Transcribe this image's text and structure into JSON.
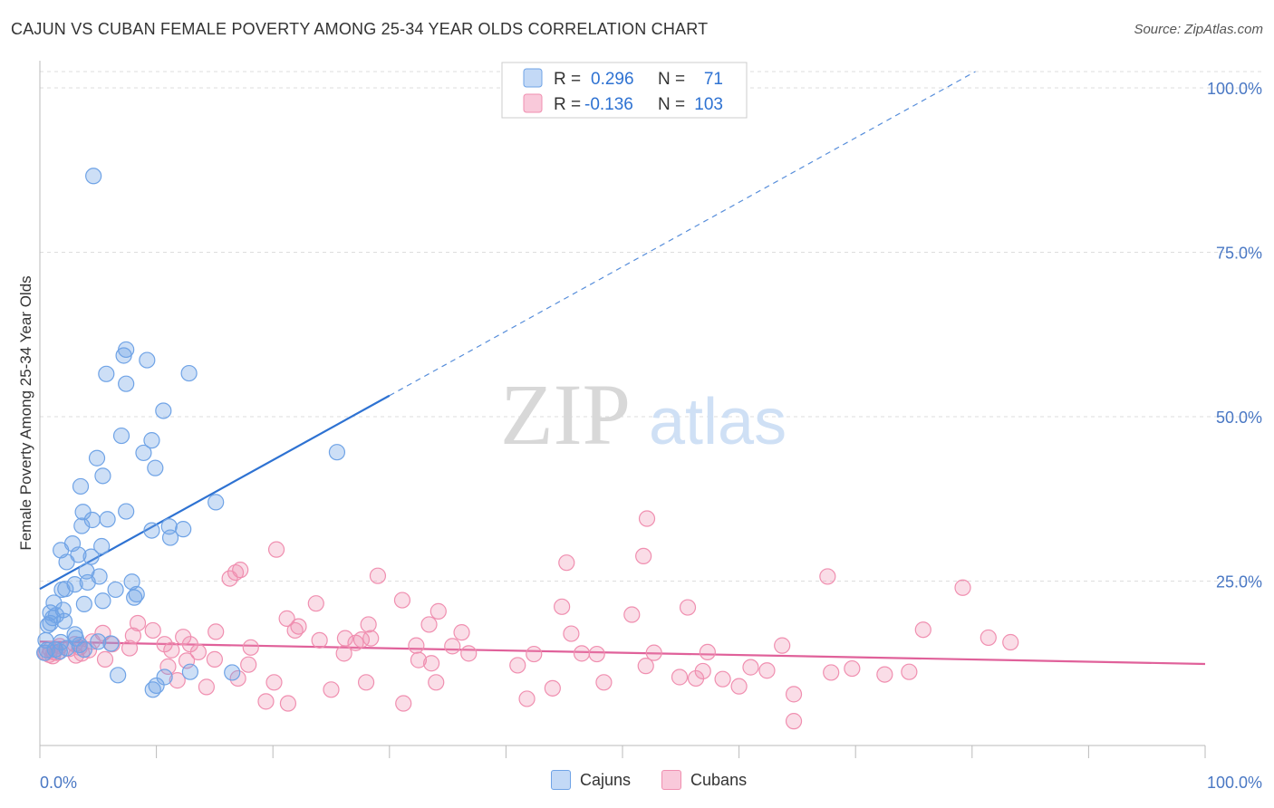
{
  "title": "CAJUN VS CUBAN FEMALE POVERTY AMONG 25-34 YEAR OLDS CORRELATION CHART",
  "source": "Source: ZipAtlas.com",
  "watermark": {
    "zip": "ZIP",
    "atlas": "atlas"
  },
  "colors": {
    "cajuns": "#6fa3e6",
    "cubans": "#f08fb0",
    "cajuns_line": "#2e72d2",
    "cubans_line": "#e0619a",
    "tick": "#4a78c4"
  },
  "stats_legend": [
    {
      "r_label": "R =",
      "r_value": "0.296",
      "n_label": "N =",
      "n_value": "71"
    },
    {
      "r_label": "R =",
      "r_value": "-0.136",
      "n_label": "N =",
      "n_value": "103"
    }
  ],
  "chart_data": {
    "type": "scatter",
    "title": "CAJUN VS CUBAN FEMALE POVERTY AMONG 25-34 YEAR OLDS CORRELATION CHART",
    "xlabel": "",
    "ylabel": "Female Poverty Among 25-34 Year Olds",
    "xlim": [
      0,
      100
    ],
    "ylim": [
      0,
      100
    ],
    "x_tick_labels": [
      "0.0%",
      "100.0%"
    ],
    "y_ticks": [
      25,
      50,
      75,
      100
    ],
    "y_tick_labels": [
      "25.0%",
      "50.0%",
      "75.0%",
      "100.0%"
    ],
    "grid": true,
    "legend_position": "bottom",
    "series": [
      {
        "name": "Cajuns",
        "color": "#6fa3e6",
        "r": 0.296,
        "n": 71,
        "trend": {
          "x0": 0,
          "y0": 23.8,
          "x1": 30,
          "y1": 53.2,
          "dashed_to_x": 100,
          "dashed_to_y": 118
        },
        "points": [
          [
            4.6,
            86.6
          ],
          [
            7.4,
            60.2
          ],
          [
            7.2,
            59.3
          ],
          [
            9.2,
            58.6
          ],
          [
            12.8,
            56.6
          ],
          [
            5.7,
            56.5
          ],
          [
            7.4,
            55.0
          ],
          [
            10.6,
            50.9
          ],
          [
            9.6,
            46.4
          ],
          [
            7.0,
            47.1
          ],
          [
            8.9,
            44.5
          ],
          [
            25.5,
            44.6
          ],
          [
            4.9,
            43.7
          ],
          [
            9.9,
            42.2
          ],
          [
            5.4,
            41.0
          ],
          [
            3.5,
            39.4
          ],
          [
            15.1,
            37.0
          ],
          [
            3.7,
            35.5
          ],
          [
            7.4,
            35.6
          ],
          [
            4.5,
            34.3
          ],
          [
            5.8,
            34.4
          ],
          [
            3.6,
            33.4
          ],
          [
            9.6,
            32.7
          ],
          [
            11.1,
            33.3
          ],
          [
            12.3,
            32.9
          ],
          [
            11.2,
            31.6
          ],
          [
            2.8,
            30.7
          ],
          [
            5.3,
            30.3
          ],
          [
            1.8,
            29.7
          ],
          [
            3.3,
            29.0
          ],
          [
            4.4,
            28.7
          ],
          [
            2.3,
            27.9
          ],
          [
            4.0,
            26.5
          ],
          [
            5.1,
            25.7
          ],
          [
            3.0,
            24.5
          ],
          [
            4.1,
            24.8
          ],
          [
            7.9,
            24.9
          ],
          [
            1.9,
            23.7
          ],
          [
            2.2,
            23.8
          ],
          [
            6.5,
            23.7
          ],
          [
            8.3,
            23.0
          ],
          [
            8.1,
            22.5
          ],
          [
            1.2,
            21.7
          ],
          [
            3.8,
            21.5
          ],
          [
            2.0,
            20.6
          ],
          [
            5.4,
            22.0
          ],
          [
            0.9,
            20.2
          ],
          [
            1.4,
            19.8
          ],
          [
            1.1,
            19.4
          ],
          [
            0.9,
            18.6
          ],
          [
            2.1,
            18.9
          ],
          [
            0.7,
            18.3
          ],
          [
            3.0,
            16.9
          ],
          [
            3.1,
            16.3
          ],
          [
            0.5,
            16.0
          ],
          [
            1.8,
            15.7
          ],
          [
            3.4,
            15.3
          ],
          [
            6.1,
            15.5
          ],
          [
            2.3,
            14.8
          ],
          [
            0.6,
            14.5
          ],
          [
            1.7,
            14.3
          ],
          [
            0.4,
            14.1
          ],
          [
            12.9,
            11.2
          ],
          [
            16.5,
            11.1
          ],
          [
            6.7,
            10.7
          ],
          [
            10.7,
            10.4
          ],
          [
            10.0,
            9.1
          ],
          [
            9.7,
            8.5
          ],
          [
            3.8,
            14.6
          ],
          [
            5.0,
            15.8
          ],
          [
            1.3,
            14.6
          ]
        ]
      },
      {
        "name": "Cubans",
        "color": "#f08fb0",
        "r": -0.136,
        "n": 103,
        "trend": {
          "x0": 0,
          "y0": 15.8,
          "x1": 100,
          "y1": 12.4
        },
        "points": [
          [
            52.1,
            34.5
          ],
          [
            20.3,
            29.8
          ],
          [
            51.8,
            28.8
          ],
          [
            45.2,
            27.8
          ],
          [
            17.2,
            26.7
          ],
          [
            16.8,
            26.3
          ],
          [
            29.0,
            25.8
          ],
          [
            67.6,
            25.7
          ],
          [
            16.3,
            25.4
          ],
          [
            79.2,
            24.0
          ],
          [
            31.1,
            22.1
          ],
          [
            23.7,
            21.6
          ],
          [
            44.8,
            21.1
          ],
          [
            55.6,
            21.0
          ],
          [
            34.2,
            20.4
          ],
          [
            50.8,
            19.9
          ],
          [
            21.2,
            19.3
          ],
          [
            8.4,
            18.6
          ],
          [
            28.2,
            18.4
          ],
          [
            33.4,
            18.4
          ],
          [
            22.2,
            18.1
          ],
          [
            21.9,
            17.5
          ],
          [
            75.8,
            17.6
          ],
          [
            36.2,
            17.2
          ],
          [
            45.6,
            17.0
          ],
          [
            9.7,
            17.5
          ],
          [
            15.1,
            17.3
          ],
          [
            5.4,
            17.1
          ],
          [
            8.0,
            16.7
          ],
          [
            12.3,
            16.5
          ],
          [
            26.2,
            16.3
          ],
          [
            27.6,
            16.1
          ],
          [
            28.4,
            16.3
          ],
          [
            24.0,
            16.0
          ],
          [
            81.4,
            16.4
          ],
          [
            27.1,
            15.6
          ],
          [
            83.3,
            15.7
          ],
          [
            4.5,
            15.8
          ],
          [
            6.2,
            15.4
          ],
          [
            10.7,
            15.4
          ],
          [
            12.9,
            15.4
          ],
          [
            3.0,
            15.4
          ],
          [
            32.3,
            15.2
          ],
          [
            1.7,
            15.1
          ],
          [
            35.4,
            15.1
          ],
          [
            63.7,
            15.2
          ],
          [
            18.1,
            14.9
          ],
          [
            7.7,
            14.8
          ],
          [
            3.4,
            14.9
          ],
          [
            2.5,
            14.7
          ],
          [
            0.9,
            14.6
          ],
          [
            4.2,
            14.5
          ],
          [
            11.3,
            14.5
          ],
          [
            13.6,
            14.2
          ],
          [
            36.8,
            14.0
          ],
          [
            42.4,
            13.9
          ],
          [
            47.8,
            13.9
          ],
          [
            46.5,
            14.0
          ],
          [
            52.7,
            14.1
          ],
          [
            26.1,
            14.0
          ],
          [
            57.3,
            14.2
          ],
          [
            1.5,
            14.1
          ],
          [
            3.6,
            14.0
          ],
          [
            1.2,
            14.2
          ],
          [
            0.5,
            14.1
          ],
          [
            0.8,
            13.8
          ],
          [
            1.1,
            13.6
          ],
          [
            3.1,
            13.7
          ],
          [
            5.6,
            13.1
          ],
          [
            12.6,
            12.9
          ],
          [
            15.0,
            13.1
          ],
          [
            17.9,
            12.3
          ],
          [
            32.5,
            13.0
          ],
          [
            33.6,
            12.5
          ],
          [
            41.0,
            12.2
          ],
          [
            11.0,
            12.0
          ],
          [
            52.0,
            12.1
          ],
          [
            61.0,
            11.9
          ],
          [
            56.9,
            11.3
          ],
          [
            69.7,
            11.7
          ],
          [
            62.4,
            11.4
          ],
          [
            67.9,
            11.1
          ],
          [
            74.6,
            11.2
          ],
          [
            72.5,
            10.8
          ],
          [
            54.9,
            10.4
          ],
          [
            56.3,
            10.2
          ],
          [
            58.6,
            10.1
          ],
          [
            11.8,
            9.9
          ],
          [
            17.0,
            10.2
          ],
          [
            20.1,
            9.6
          ],
          [
            28.0,
            9.6
          ],
          [
            34.0,
            9.6
          ],
          [
            48.4,
            9.6
          ],
          [
            60.0,
            9.0
          ],
          [
            44.0,
            8.7
          ],
          [
            25.0,
            8.5
          ],
          [
            14.3,
            8.9
          ],
          [
            64.7,
            7.8
          ],
          [
            21.3,
            6.4
          ],
          [
            19.4,
            6.7
          ],
          [
            31.2,
            6.4
          ],
          [
            41.8,
            7.1
          ],
          [
            64.7,
            3.7
          ]
        ]
      }
    ]
  }
}
